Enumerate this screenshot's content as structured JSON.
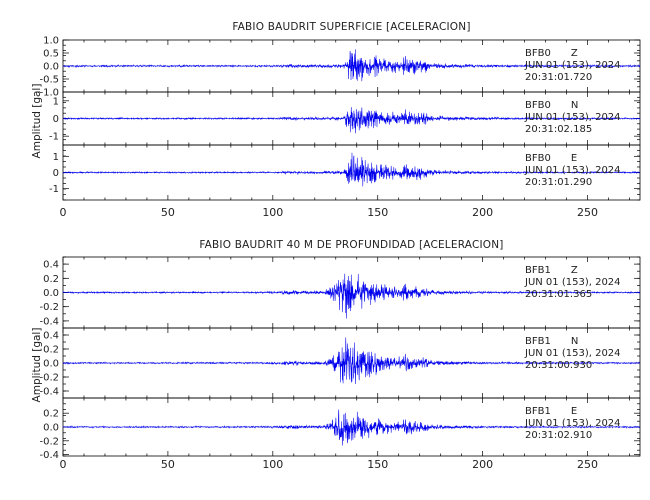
{
  "colors": {
    "signal": "#0000ee",
    "frame": "#000000",
    "background": "#ffffff"
  },
  "chart_data": [
    {
      "type": "line",
      "title": "FABIO BAUDRIT SUPERFICIE [ACELERACION]",
      "ylabel": "Amplitud  [gal]",
      "xlim": [
        0,
        275
      ],
      "x_ticks": [
        "0",
        "50",
        "100",
        "150",
        "200",
        "250"
      ],
      "panels": [
        {
          "station": "BFB0",
          "component": "Z",
          "date_line": "JUN 01 (153), 2024",
          "time_line": "20:31:01.720",
          "ylim": [
            -1.0,
            1.0
          ],
          "y_ticks": [
            "-1.0",
            "-0.5",
            "0.0",
            "0.5",
            "1.0"
          ],
          "noise": 0.04,
          "peak_amp": 0.85,
          "event_x": 134,
          "peak_x": 136.5,
          "decay": 18,
          "seed": 11
        },
        {
          "station": "BFB0",
          "component": "N",
          "date_line": "JUN 01 (153), 2024",
          "time_line": "20:31:02.185",
          "ylim": [
            -1.5,
            1.5
          ],
          "y_ticks": [
            "-1",
            "0",
            "1"
          ],
          "noise": 0.05,
          "peak_amp": 1.05,
          "event_x": 133,
          "peak_x": 136,
          "decay": 20,
          "seed": 23
        },
        {
          "station": "BFB0",
          "component": "E",
          "date_line": "JUN 01 (153), 2024",
          "time_line": "20:31:01.290",
          "ylim": [
            -1.7,
            1.7
          ],
          "y_ticks": [
            "-1",
            "0",
            "1"
          ],
          "noise": 0.05,
          "peak_amp": 1.5,
          "event_x": 133,
          "peak_x": 136,
          "decay": 18,
          "seed": 37
        }
      ]
    },
    {
      "type": "line",
      "title": "FABIO BAUDRIT 40 M DE PROFUNDIDAD [ACELERACION]",
      "ylabel": "Amplitud  [gal]",
      "xlim": [
        0,
        275
      ],
      "x_ticks": [
        "0",
        "50",
        "100",
        "150",
        "200",
        "250"
      ],
      "panels": [
        {
          "station": "BFB1",
          "component": "Z",
          "date_line": "JUN 01 (153), 2024",
          "time_line": "20:31:01.365",
          "ylim": [
            -0.5,
            0.5
          ],
          "y_ticks": [
            "-0.4",
            "-0.2",
            "0.0",
            "0.2",
            "0.4"
          ],
          "noise": 0.012,
          "peak_amp": 0.4,
          "event_x": 123,
          "peak_x": 134,
          "decay": 16,
          "seed": 51
        },
        {
          "station": "BFB1",
          "component": "N",
          "date_line": "JUN 01 (153), 2024",
          "time_line": "20:31:00.930",
          "ylim": [
            -0.5,
            0.5
          ],
          "y_ticks": [
            "-0.4",
            "-0.2",
            "0.0",
            "0.2",
            "0.4"
          ],
          "noise": 0.012,
          "peak_amp": 0.42,
          "event_x": 123,
          "peak_x": 135,
          "decay": 16,
          "seed": 67
        },
        {
          "station": "BFB1",
          "component": "E",
          "date_line": "JUN 01 (153), 2024",
          "time_line": "20:31:02.910",
          "ylim": [
            -0.42,
            0.42
          ],
          "y_ticks": [
            "-0.4",
            "-0.2",
            "0.0",
            "0.2"
          ],
          "noise": 0.012,
          "peak_amp": 0.36,
          "event_x": 123,
          "peak_x": 133,
          "decay": 17,
          "seed": 83
        }
      ]
    }
  ]
}
